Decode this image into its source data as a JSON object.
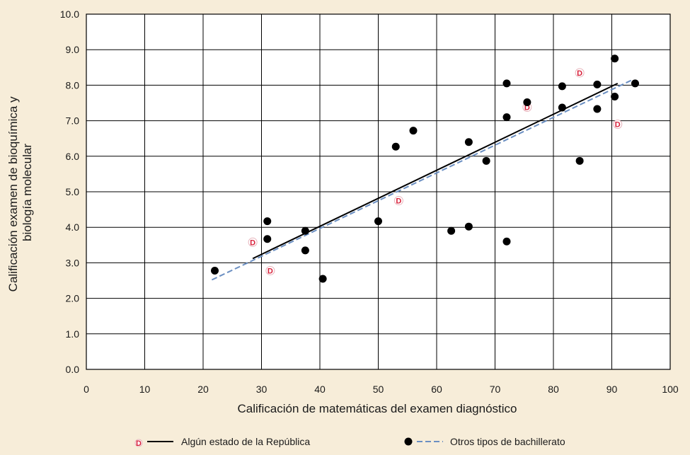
{
  "chart_data": {
    "type": "scatter",
    "xlabel": "Calificación de matemáticas del examen diagnóstico",
    "ylabel": "Calificación examen de bioquímica y biología molecular",
    "ylabel_lines": [
      "Calificación examen de bioquímica y",
      "biología molecular"
    ],
    "xlim": [
      0,
      100
    ],
    "ylim": [
      0,
      10
    ],
    "x_ticks": [
      "0",
      "10",
      "20",
      "30",
      "40",
      "50",
      "60",
      "70",
      "80",
      "90",
      "100"
    ],
    "y_ticks": [
      "0.0",
      "1.0",
      "2.0",
      "3.0",
      "4.0",
      "5.0",
      "6.0",
      "7.0",
      "8.0",
      "9.0",
      "10.0"
    ],
    "grid": true,
    "legend_position": "bottom",
    "series": [
      {
        "name": "Algún estado de la República",
        "marker": "D",
        "color": "#d8203a",
        "points": [
          [
            28.5,
            3.58
          ],
          [
            31.5,
            2.78
          ],
          [
            53.5,
            4.75
          ],
          [
            75.5,
            7.38
          ],
          [
            84.5,
            8.35
          ],
          [
            91,
            6.9
          ]
        ],
        "trend": {
          "color": "#000000",
          "style": "solid",
          "from": [
            28.5,
            3.12
          ],
          "to": [
            91,
            8.05
          ]
        }
      },
      {
        "name": "Otros tipos de bachillerato",
        "marker": "circle",
        "color": "#000000",
        "points": [
          [
            22,
            2.78
          ],
          [
            31,
            4.17
          ],
          [
            31,
            3.67
          ],
          [
            37.5,
            3.9
          ],
          [
            37.5,
            3.35
          ],
          [
            40.5,
            2.55
          ],
          [
            50,
            4.17
          ],
          [
            53,
            6.27
          ],
          [
            56,
            6.72
          ],
          [
            62.5,
            3.9
          ],
          [
            65.5,
            4.02
          ],
          [
            65.5,
            6.4
          ],
          [
            68.5,
            5.87
          ],
          [
            72,
            8.05
          ],
          [
            72,
            7.1
          ],
          [
            72,
            3.6
          ],
          [
            75.5,
            7.52
          ],
          [
            81.5,
            7.97
          ],
          [
            81.5,
            7.37
          ],
          [
            84.5,
            5.87
          ],
          [
            87.5,
            8.02
          ],
          [
            87.5,
            7.33
          ],
          [
            90.5,
            8.75
          ],
          [
            90.5,
            7.68
          ],
          [
            94,
            8.05
          ]
        ],
        "trend": {
          "color": "#6b8fc2",
          "style": "dashed",
          "from": [
            21.5,
            2.52
          ],
          "to": [
            93.5,
            8.15
          ]
        }
      }
    ]
  }
}
